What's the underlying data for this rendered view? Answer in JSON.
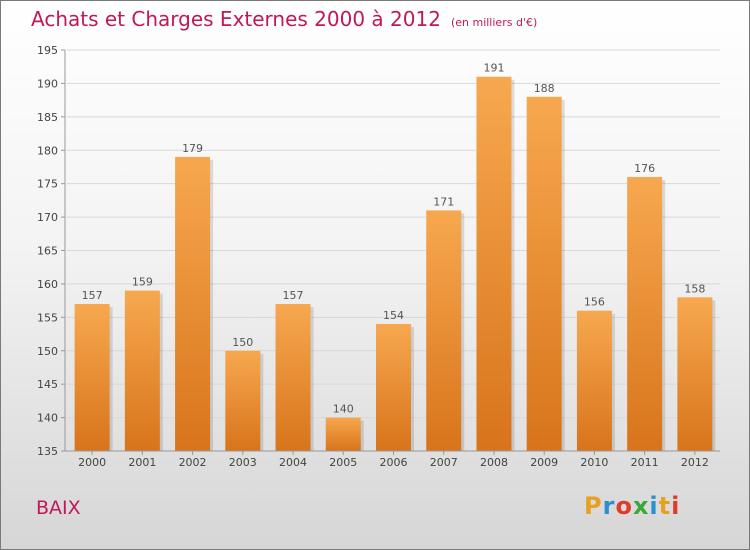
{
  "title": "Achats et Charges Externes 2000 à 2012",
  "subtitle": "(en milliers d'€)",
  "town": "BAIX",
  "logo": {
    "letters": [
      "P",
      "r",
      "o",
      "x",
      "i",
      "t",
      "i"
    ],
    "colors": [
      "#e8a020",
      "#2a8fd0",
      "#e03c2a",
      "#3aa83a",
      "#2a8fd0",
      "#e8a020",
      "#e03c2a"
    ]
  },
  "colors": {
    "bar_top": "#f7a84f",
    "bar_bottom": "#d8741b",
    "title": "#c0185a"
  },
  "chart_data": {
    "type": "bar",
    "categories": [
      "2000",
      "2001",
      "2002",
      "2003",
      "2004",
      "2005",
      "2006",
      "2007",
      "2008",
      "2009",
      "2010",
      "2011",
      "2012"
    ],
    "values": [
      157,
      159,
      179,
      150,
      157,
      140,
      154,
      171,
      191,
      188,
      156,
      176,
      158
    ],
    "ylim": [
      135,
      195
    ],
    "yticks": [
      135,
      140,
      145,
      150,
      155,
      160,
      165,
      170,
      175,
      180,
      185,
      190,
      195
    ],
    "grid": true
  }
}
